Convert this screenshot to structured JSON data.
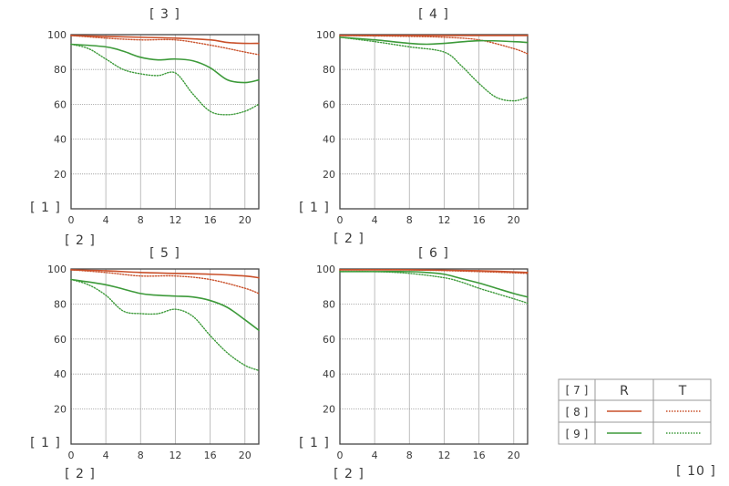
{
  "chart_data": [
    {
      "type": "line",
      "title": "[ 3 ]",
      "ylabel": "[ 1 ]",
      "xlabel": "[ 2 ]",
      "xlim": [
        0,
        21.6
      ],
      "ylim": [
        0,
        100
      ],
      "xticks": [
        0,
        4,
        8,
        12,
        16,
        20
      ],
      "yticks": [
        20,
        40,
        60,
        80,
        100
      ],
      "grid": true,
      "series": [
        {
          "key": "r1",
          "style": "solid",
          "color": "#c9502a",
          "x": [
            0,
            4,
            8,
            12,
            16,
            18,
            20,
            21.6
          ],
          "y": [
            99.5,
            99,
            98.5,
            98,
            97,
            95.5,
            95,
            95
          ]
        },
        {
          "key": "t1",
          "style": "dotted",
          "color": "#c9502a",
          "x": [
            0,
            4,
            8,
            12,
            16,
            20,
            21.6
          ],
          "y": [
            99.5,
            98,
            97,
            97,
            94,
            90,
            88.5
          ]
        },
        {
          "key": "r2",
          "style": "solid",
          "color": "#3d9a3a",
          "x": [
            0,
            4,
            6,
            8,
            10,
            12,
            14,
            16,
            18,
            20,
            21.6
          ],
          "y": [
            94.5,
            93,
            90.5,
            87,
            85.5,
            86,
            85,
            81,
            74,
            72.5,
            74
          ]
        },
        {
          "key": "t2",
          "style": "dotted",
          "color": "#3d9a3a",
          "x": [
            0,
            2,
            4,
            6,
            8,
            10,
            12,
            14,
            16,
            18,
            20,
            21.6
          ],
          "y": [
            94.5,
            92,
            86,
            80,
            77.5,
            76.5,
            78,
            66,
            56,
            54,
            56,
            60
          ]
        }
      ]
    },
    {
      "type": "line",
      "title": "[ 4 ]",
      "ylabel": "[ 1 ]",
      "xlabel": "[ 2 ]",
      "xlim": [
        0,
        21.6
      ],
      "ylim": [
        0,
        100
      ],
      "xticks": [
        0,
        4,
        8,
        12,
        16,
        20
      ],
      "yticks": [
        20,
        40,
        60,
        80,
        100
      ],
      "grid": true,
      "series": [
        {
          "key": "r1",
          "style": "solid",
          "color": "#c9502a",
          "x": [
            0,
            8,
            16,
            21.6
          ],
          "y": [
            99.5,
            99.5,
            99.5,
            99.5
          ]
        },
        {
          "key": "t1",
          "style": "dotted",
          "color": "#c9502a",
          "x": [
            0,
            8,
            12,
            16,
            20,
            21.6
          ],
          "y": [
            99.5,
            99,
            98.5,
            97,
            92,
            89
          ]
        },
        {
          "key": "r2",
          "style": "solid",
          "color": "#3d9a3a",
          "x": [
            0,
            4,
            8,
            10,
            12,
            16,
            20,
            21.6
          ],
          "y": [
            98.5,
            97,
            95,
            94.5,
            95,
            96.5,
            96,
            95.5
          ]
        },
        {
          "key": "t2",
          "style": "dotted",
          "color": "#3d9a3a",
          "x": [
            0,
            4,
            8,
            12,
            14,
            16,
            18,
            20,
            21.6
          ],
          "y": [
            98.5,
            96,
            93,
            90,
            82,
            72,
            64,
            62,
            64
          ]
        }
      ]
    },
    {
      "type": "line",
      "title": "[ 5 ]",
      "ylabel": "[ 1 ]",
      "xlabel": "[ 2 ]",
      "xlim": [
        0,
        21.6
      ],
      "ylim": [
        0,
        100
      ],
      "xticks": [
        0,
        4,
        8,
        12,
        16,
        20
      ],
      "yticks": [
        20,
        40,
        60,
        80,
        100
      ],
      "grid": true,
      "series": [
        {
          "key": "r1",
          "style": "solid",
          "color": "#c9502a",
          "x": [
            0,
            4,
            8,
            12,
            16,
            20,
            21.6
          ],
          "y": [
            99.5,
            99,
            98,
            97.5,
            97,
            96,
            95
          ]
        },
        {
          "key": "t1",
          "style": "dotted",
          "color": "#c9502a",
          "x": [
            0,
            4,
            8,
            12,
            16,
            20,
            21.6
          ],
          "y": [
            99.5,
            98,
            96,
            96,
            94,
            89,
            86
          ]
        },
        {
          "key": "r2",
          "style": "solid",
          "color": "#3d9a3a",
          "x": [
            0,
            4,
            8,
            10,
            12,
            14,
            16,
            18,
            20,
            21.6
          ],
          "y": [
            94,
            91,
            86,
            85,
            84.5,
            84,
            82,
            78,
            71,
            65
          ]
        },
        {
          "key": "t2",
          "style": "dotted",
          "color": "#3d9a3a",
          "x": [
            0,
            2,
            4,
            6,
            8,
            10,
            12,
            14,
            16,
            18,
            20,
            21.6
          ],
          "y": [
            94,
            91,
            85,
            76,
            74.5,
            74.5,
            77,
            73,
            62,
            52,
            45,
            42
          ]
        }
      ]
    },
    {
      "type": "line",
      "title": "[ 6 ]",
      "ylabel": "[ 1 ]",
      "xlabel": "[ 2 ]",
      "xlim": [
        0,
        21.6
      ],
      "ylim": [
        0,
        100
      ],
      "xticks": [
        0,
        4,
        8,
        12,
        16,
        20
      ],
      "yticks": [
        20,
        40,
        60,
        80,
        100
      ],
      "grid": true,
      "series": [
        {
          "key": "r1",
          "style": "solid",
          "color": "#c9502a",
          "x": [
            0,
            8,
            16,
            21.6
          ],
          "y": [
            99.5,
            99.5,
            99,
            98
          ]
        },
        {
          "key": "t1",
          "style": "dotted",
          "color": "#c9502a",
          "x": [
            0,
            8,
            16,
            21.6
          ],
          "y": [
            99.5,
            99.5,
            98.5,
            97.5
          ]
        },
        {
          "key": "r2",
          "style": "solid",
          "color": "#3d9a3a",
          "x": [
            0,
            4,
            8,
            10,
            12,
            14,
            16,
            18,
            20,
            21.6
          ],
          "y": [
            98.5,
            98.5,
            98.5,
            98,
            97,
            94.5,
            92,
            89,
            86,
            84
          ]
        },
        {
          "key": "t2",
          "style": "dotted",
          "color": "#3d9a3a",
          "x": [
            0,
            4,
            8,
            12,
            14,
            16,
            18,
            20,
            21.6
          ],
          "y": [
            98.5,
            98.5,
            97.5,
            95,
            92.5,
            89,
            86,
            83,
            80.5
          ]
        }
      ]
    }
  ],
  "legend": {
    "corner": "[ 7 ]",
    "col_r": "R",
    "col_t": "T",
    "row1": "[ 8 ]",
    "row2": "[ 9 ]",
    "red": "#c9502a",
    "green": "#3d9a3a"
  },
  "footnote": "[ 10 ]"
}
